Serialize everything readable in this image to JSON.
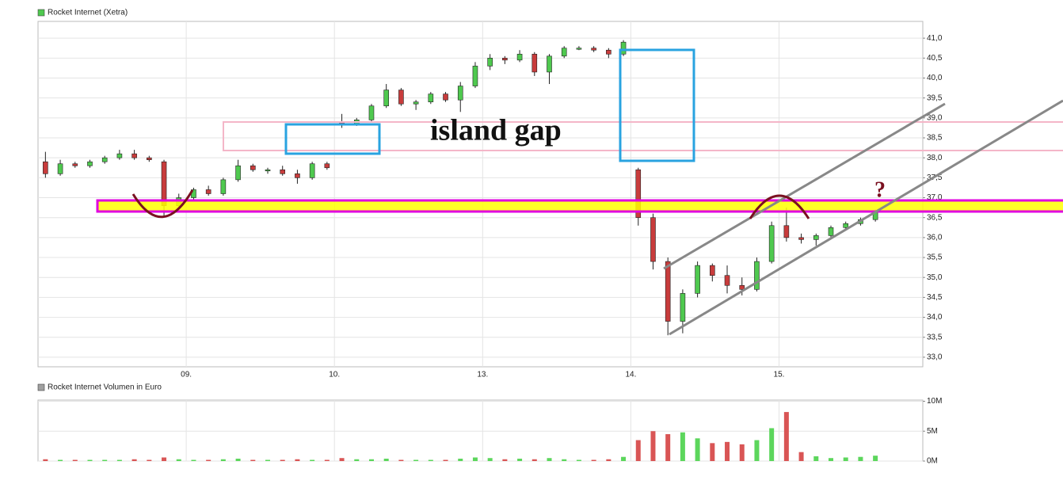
{
  "chart_data": [
    {
      "type": "candlestick",
      "title": "Rocket Internet (Xetra)",
      "legend_color": "#4fc94f",
      "up_color": "#4fc94f",
      "down_color": "#c83c3c",
      "xlim": [
        0,
        5.97
      ],
      "ylim": [
        32.76,
        41.42
      ],
      "xticks": [
        {
          "value": 1,
          "label": "09."
        },
        {
          "value": 2,
          "label": "10."
        },
        {
          "value": 3,
          "label": "13."
        },
        {
          "value": 4,
          "label": "14."
        },
        {
          "value": 5,
          "label": "15."
        }
      ],
      "yticks": [
        {
          "value": 33,
          "label": "33,0"
        },
        {
          "value": 33.5,
          "label": "33,5"
        },
        {
          "value": 34,
          "label": "34,0"
        },
        {
          "value": 34.5,
          "label": "34,5"
        },
        {
          "value": 35,
          "label": "35,0"
        },
        {
          "value": 35.5,
          "label": "35,5"
        },
        {
          "value": 36,
          "label": "36,0"
        },
        {
          "value": 36.5,
          "label": "36,5"
        },
        {
          "value": 37,
          "label": "37,0"
        },
        {
          "value": 37.5,
          "label": "37,5"
        },
        {
          "value": 38,
          "label": "38,0"
        },
        {
          "value": 38.5,
          "label": "38,5"
        },
        {
          "value": 39,
          "label": "39,0"
        },
        {
          "value": 39.5,
          "label": "39,5"
        },
        {
          "value": 40,
          "label": "40,0"
        },
        {
          "value": 40.5,
          "label": "40,5"
        },
        {
          "value": 41,
          "label": "41,0"
        }
      ],
      "grid": true,
      "annotations": [
        "island gap",
        "?"
      ],
      "x": [
        0.05,
        0.15,
        0.25,
        0.35,
        0.45,
        0.55,
        0.65,
        0.75,
        0.85,
        0.95,
        1.05,
        1.15,
        1.25,
        1.35,
        1.45,
        1.55,
        1.65,
        1.75,
        1.85,
        1.95,
        2.05,
        2.15,
        2.25,
        2.35,
        2.45,
        2.55,
        2.65,
        2.75,
        2.85,
        2.95,
        3.05,
        3.15,
        3.25,
        3.35,
        3.45,
        3.55,
        3.65,
        3.75,
        3.85,
        3.95,
        4.05,
        4.15,
        4.25,
        4.35,
        4.45,
        4.55,
        4.65,
        4.75,
        4.85,
        4.95,
        5.05,
        5.15,
        5.25,
        5.35,
        5.45,
        5.55,
        5.65
      ],
      "open": [
        37.9,
        37.6,
        37.85,
        37.8,
        37.9,
        38.0,
        38.1,
        38.0,
        37.9,
        36.8,
        37.0,
        37.2,
        37.1,
        37.45,
        37.8,
        37.7,
        37.7,
        37.6,
        37.5,
        37.85,
        38.9,
        38.85,
        38.95,
        39.3,
        39.7,
        39.35,
        39.4,
        39.6,
        39.45,
        39.8,
        40.3,
        40.5,
        40.45,
        40.6,
        40.15,
        40.55,
        40.75,
        40.75,
        40.7,
        40.6,
        37.7,
        36.5,
        35.4,
        33.9,
        34.6,
        35.3,
        35.05,
        34.8,
        34.7,
        35.4,
        36.3,
        36.0,
        35.95,
        36.05,
        36.25,
        36.35,
        36.45
      ],
      "high": [
        38.15,
        37.95,
        37.9,
        37.95,
        38.05,
        38.2,
        38.2,
        38.05,
        37.95,
        37.1,
        37.25,
        37.3,
        37.5,
        37.95,
        37.85,
        37.75,
        37.8,
        37.7,
        37.9,
        37.9,
        39.1,
        39.0,
        39.35,
        39.85,
        39.75,
        39.45,
        39.65,
        39.65,
        39.9,
        40.4,
        40.6,
        40.55,
        40.7,
        40.65,
        40.6,
        40.8,
        40.8,
        40.8,
        40.75,
        40.95,
        37.75,
        36.6,
        35.5,
        34.7,
        35.4,
        35.35,
        35.3,
        35.0,
        35.5,
        36.4,
        36.75,
        36.1,
        36.1,
        36.3,
        36.4,
        36.5,
        36.7
      ],
      "low": [
        37.5,
        37.55,
        37.75,
        37.75,
        37.85,
        37.95,
        37.95,
        37.9,
        36.55,
        36.7,
        36.95,
        37.05,
        37.05,
        37.4,
        37.65,
        37.6,
        37.55,
        37.35,
        37.45,
        37.7,
        38.75,
        38.8,
        38.9,
        39.25,
        39.3,
        39.2,
        39.35,
        39.4,
        39.15,
        39.75,
        40.2,
        40.35,
        40.4,
        40.05,
        39.85,
        40.5,
        40.7,
        40.65,
        40.5,
        40.55,
        36.3,
        35.2,
        33.55,
        33.6,
        34.5,
        34.9,
        34.6,
        34.55,
        34.65,
        35.35,
        35.9,
        35.85,
        35.8,
        36.0,
        36.2,
        36.3,
        36.4
      ],
      "close": [
        37.6,
        37.85,
        37.8,
        37.9,
        38.0,
        38.1,
        38.0,
        37.95,
        36.8,
        37.0,
        37.2,
        37.1,
        37.45,
        37.8,
        37.7,
        37.7,
        37.6,
        37.5,
        37.85,
        37.75,
        38.85,
        38.95,
        39.3,
        39.7,
        39.35,
        39.4,
        39.6,
        39.45,
        39.8,
        40.3,
        40.5,
        40.45,
        40.6,
        40.15,
        40.55,
        40.75,
        40.75,
        40.7,
        40.6,
        40.9,
        36.5,
        35.4,
        33.9,
        34.6,
        35.3,
        35.05,
        34.8,
        34.7,
        35.4,
        36.3,
        36.0,
        35.95,
        36.05,
        36.25,
        36.35,
        36.45,
        36.65
      ]
    },
    {
      "type": "bar",
      "title": "Rocket Internet Volumen in Euro",
      "legend_color": "#a0a0a0",
      "xlim": [
        0,
        5.97
      ],
      "ylim": [
        0,
        10.2
      ],
      "xticks": [
        {
          "value": 1,
          "label": "09."
        },
        {
          "value": 2,
          "label": "10."
        },
        {
          "value": 3,
          "label": "13."
        },
        {
          "value": 4,
          "label": "14."
        },
        {
          "value": 5,
          "label": "15."
        }
      ],
      "yticks": [
        {
          "value": 0,
          "label": "0M"
        },
        {
          "value": 5,
          "label": "5M"
        },
        {
          "value": 10,
          "label": "10M"
        }
      ],
      "grid": true,
      "x": [
        0.05,
        0.15,
        0.25,
        0.35,
        0.45,
        0.55,
        0.65,
        0.75,
        0.85,
        0.95,
        1.05,
        1.15,
        1.25,
        1.35,
        1.45,
        1.55,
        1.65,
        1.75,
        1.85,
        1.95,
        2.05,
        2.15,
        2.25,
        2.35,
        2.45,
        2.55,
        2.65,
        2.75,
        2.85,
        2.95,
        3.05,
        3.15,
        3.25,
        3.35,
        3.45,
        3.55,
        3.65,
        3.75,
        3.85,
        3.95,
        4.05,
        4.15,
        4.25,
        4.35,
        4.45,
        4.55,
        4.65,
        4.75,
        4.85,
        4.95,
        5.05,
        5.15,
        5.25,
        5.35,
        5.45,
        5.55,
        5.65
      ],
      "values": [
        0.3,
        0.2,
        0.2,
        0.2,
        0.2,
        0.2,
        0.3,
        0.2,
        0.6,
        0.3,
        0.2,
        0.2,
        0.3,
        0.4,
        0.2,
        0.2,
        0.2,
        0.3,
        0.2,
        0.2,
        0.5,
        0.3,
        0.3,
        0.4,
        0.2,
        0.2,
        0.2,
        0.2,
        0.4,
        0.6,
        0.5,
        0.3,
        0.4,
        0.3,
        0.5,
        0.3,
        0.2,
        0.2,
        0.3,
        0.7,
        3.5,
        5.0,
        4.5,
        4.8,
        3.8,
        3.0,
        3.2,
        2.8,
        3.5,
        5.5,
        8.2,
        1.5,
        0.8,
        0.5,
        0.6,
        0.7,
        0.9
      ],
      "colors": [
        "#d95555",
        "#5cd65c",
        "#d95555",
        "#5cd65c",
        "#5cd65c",
        "#5cd65c",
        "#d95555",
        "#d95555",
        "#d95555",
        "#5cd65c",
        "#5cd65c",
        "#d95555",
        "#5cd65c",
        "#5cd65c",
        "#d95555",
        "#5cd65c",
        "#d95555",
        "#d95555",
        "#5cd65c",
        "#d95555",
        "#d95555",
        "#5cd65c",
        "#5cd65c",
        "#5cd65c",
        "#d95555",
        "#5cd65c",
        "#5cd65c",
        "#d95555",
        "#5cd65c",
        "#5cd65c",
        "#5cd65c",
        "#d95555",
        "#5cd65c",
        "#d95555",
        "#5cd65c",
        "#5cd65c",
        "#5cd65c",
        "#d95555",
        "#d95555",
        "#5cd65c",
        "#d95555",
        "#d95555",
        "#d95555",
        "#5cd65c",
        "#5cd65c",
        "#d95555",
        "#d95555",
        "#d95555",
        "#5cd65c",
        "#5cd65c",
        "#d95555",
        "#d95555",
        "#5cd65c",
        "#5cd65c",
        "#5cd65c",
        "#5cd65c",
        "#5cd65c"
      ]
    }
  ]
}
